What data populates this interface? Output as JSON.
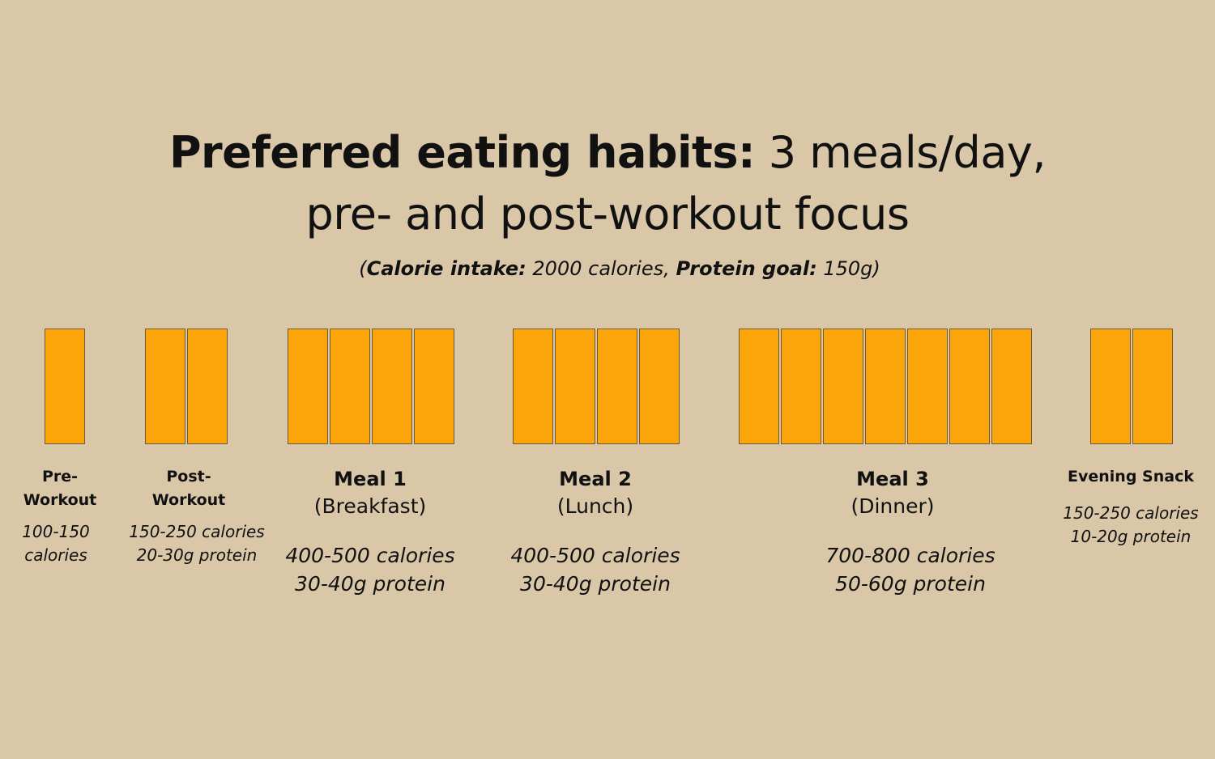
{
  "title": {
    "bold": "Preferred eating habits:",
    "rest_line1": " 3 meals/day,",
    "line2": "pre- and post-workout focus"
  },
  "subtitle": {
    "open": "(",
    "calorie_label": "Calorie intake:",
    "calorie_value": " 2000 calories, ",
    "protein_label": "Protein goal:",
    "protein_value": " 150g",
    "close": ")"
  },
  "colors": {
    "background": "#d9c7a7",
    "block_fill": "#fba50a",
    "block_border": "#6e5b3c"
  },
  "meals": [
    {
      "id": "pre-workout",
      "name": "Pre-\nWorkout",
      "units": 1,
      "info": "100-150\ncalories"
    },
    {
      "id": "post-workout",
      "name": "Post-\nWorkout",
      "units": 2,
      "info": "150-250 calories\n20-30g protein"
    },
    {
      "id": "meal-1",
      "name": "Meal 1",
      "sub": "(Breakfast)",
      "units": 4,
      "info": "400-500 calories\n30-40g protein"
    },
    {
      "id": "meal-2",
      "name": "Meal 2",
      "sub": "(Lunch)",
      "units": 4,
      "info": "400-500 calories\n30-40g protein"
    },
    {
      "id": "meal-3",
      "name": "Meal 3",
      "sub": "(Dinner)",
      "units": 7,
      "info": "700-800 calories\n50-60g protein"
    },
    {
      "id": "evening-snack",
      "name": "Evening Snack",
      "units": 2,
      "info": "150-250 calories\n10-20g protein"
    }
  ]
}
